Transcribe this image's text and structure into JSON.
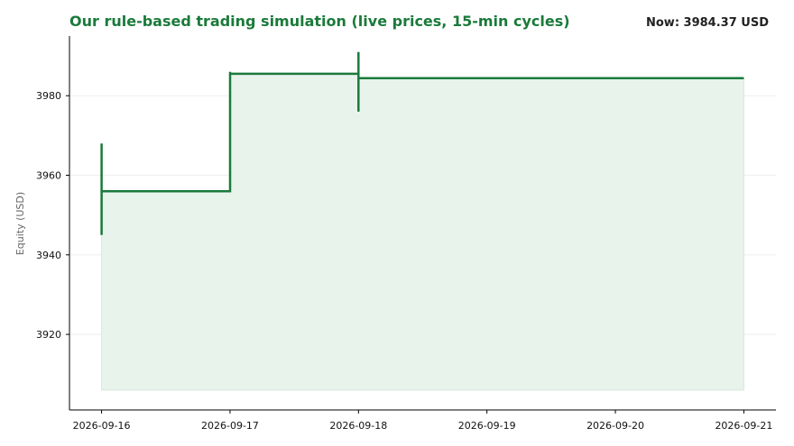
{
  "header": {
    "title": "Our rule-based trading simulation (live prices, 15-min cycles)",
    "now_label": "Now: 3984.37 USD"
  },
  "chart_data": {
    "type": "line",
    "title": "Our rule-based trading simulation (live prices, 15-min cycles)",
    "xlabel": "",
    "ylabel": "Equity (USD)",
    "x_ticks": [
      "2026-09-16",
      "2026-09-17",
      "2026-09-18",
      "2026-09-19",
      "2026-09-20",
      "2026-09-21"
    ],
    "y_ticks": [
      3920,
      3940,
      3960,
      3980
    ],
    "xlim": [
      "2026-09-15T18:00",
      "2026-09-21T06:00"
    ],
    "ylim": [
      3901,
      3995
    ],
    "grid": "horizontal",
    "color": "#1a7a3a",
    "fill_color": "#e8f3ec",
    "fill_baseline": 3906,
    "step_series": [
      {
        "x": "2026-09-16T00:00",
        "y": 3968
      },
      {
        "x": "2026-09-16T00:00",
        "y": 3945
      },
      {
        "x": "2026-09-16T00:00",
        "y": 3956
      },
      {
        "x": "2026-09-17T00:00",
        "y": 3956
      },
      {
        "x": "2026-09-17T00:00",
        "y": 3986
      },
      {
        "x": "2026-09-17T00:00",
        "y": 3985.5
      },
      {
        "x": "2026-09-18T00:00",
        "y": 3985.5
      },
      {
        "x": "2026-09-18T00:00",
        "y": 3991
      },
      {
        "x": "2026-09-18T00:00",
        "y": 3976
      },
      {
        "x": "2026-09-18T00:00",
        "y": 3984.4
      },
      {
        "x": "2026-09-21T00:00",
        "y": 3984.4
      }
    ],
    "latest_value": 3984.37
  }
}
